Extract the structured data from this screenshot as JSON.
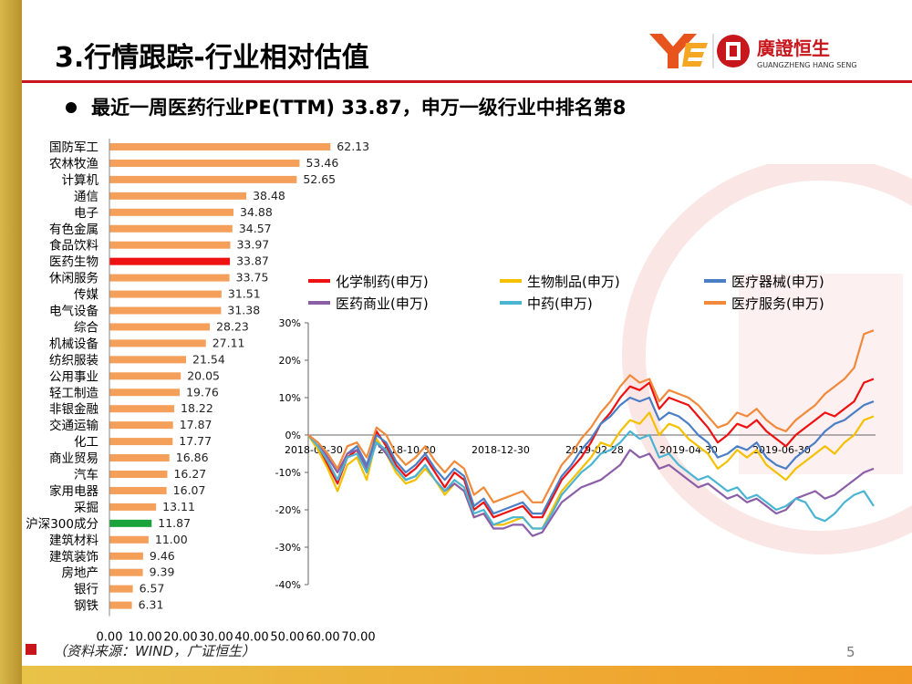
{
  "header": {
    "title": "3.行情跟踪-行业相对估值",
    "logo_text_cn": "廣證恒生",
    "logo_text_en": "GUANGZHENG HANG SENG"
  },
  "subtitle": "最近一周医药行业PE(TTM) 33.87，申万一级行业中排名第8",
  "footer": {
    "source": "（资料来源：WIND，广证恒生）",
    "page": "5"
  },
  "colors": {
    "bar_default": "#f4a05a",
    "bar_highlight_pharma": "#ee1111",
    "bar_highlight_index": "#1aa33a",
    "accent_red": "#c8161d"
  },
  "chart_data": [
    {
      "type": "bar",
      "orientation": "horizontal",
      "categories": [
        "国防军工",
        "农林牧渔",
        "计算机",
        "通信",
        "电子",
        "有色金属",
        "食品饮料",
        "医药生物",
        "休闲服务",
        "传媒",
        "电气设备",
        "综合",
        "机械设备",
        "纺织服装",
        "公用事业",
        "轻工制造",
        "非银金融",
        "交通运输",
        "化工",
        "商业贸易",
        "汽车",
        "家用电器",
        "采掘",
        "沪深300成分",
        "建筑材料",
        "建筑装饰",
        "房地产",
        "银行",
        "钢铁"
      ],
      "values": [
        62.13,
        53.46,
        52.65,
        38.48,
        34.88,
        34.57,
        33.97,
        33.87,
        33.75,
        31.51,
        31.38,
        28.23,
        27.11,
        21.54,
        20.05,
        19.76,
        18.22,
        17.87,
        17.77,
        16.86,
        16.27,
        16.07,
        13.11,
        11.87,
        11.0,
        9.46,
        9.39,
        6.57,
        6.31
      ],
      "value_labels": [
        "62.13",
        "53.46",
        "52.65",
        "38.48",
        "34.88",
        "34.57",
        "33.97",
        "33.87",
        "33.75",
        "31.51",
        "31.38",
        "28.23",
        "27.11",
        "21.54",
        "20.05",
        "19.76",
        "18.22",
        "17.87",
        "17.77",
        "16.86",
        "16.27",
        "16.07",
        "13.11",
        "11.87",
        "11.00",
        "9.46",
        "9.39",
        "6.57",
        "6.31"
      ],
      "highlights": {
        "医药生物": "red",
        "沪深300成分": "green"
      },
      "xlim": [
        0,
        70
      ],
      "xticks": [
        "0.00",
        "10.00",
        "20.00",
        "30.00",
        "40.00",
        "50.00",
        "60.00",
        "70.00"
      ]
    },
    {
      "type": "line",
      "ylim": [
        -40,
        30
      ],
      "yticks": [
        "30%",
        "20%",
        "10%",
        "0%",
        "-10%",
        "-20%",
        "-30%",
        "-40%"
      ],
      "xticks": [
        "2018-08-30",
        "2018-10-30",
        "2018-12-30",
        "2019-02-28",
        "2019-04-30",
        "2019-06-30"
      ],
      "x_range_days": 336,
      "series": [
        {
          "name": "化学制药(申万)",
          "color": "#ee1111",
          "values": [
            0,
            -3,
            -8,
            -13,
            -6,
            -4,
            -10,
            1,
            -3,
            -8,
            -11,
            -9,
            -6,
            -10,
            -14,
            -10,
            -12,
            -20,
            -18,
            -22,
            -21,
            -20,
            -19,
            -22,
            -22,
            -17,
            -12,
            -9,
            -6,
            -2,
            3,
            6,
            10,
            13,
            12,
            14,
            7,
            10,
            9,
            8,
            5,
            2,
            -2,
            0,
            3,
            2,
            4,
            1,
            -1,
            -3,
            0,
            2,
            4,
            6,
            5,
            7,
            9,
            14,
            15
          ]
        },
        {
          "name": "生物制品(申万)",
          "color": "#f5c000",
          "values": [
            0,
            -4,
            -9,
            -15,
            -8,
            -6,
            -12,
            -1,
            -5,
            -10,
            -13,
            -12,
            -9,
            -12,
            -16,
            -13,
            -15,
            -22,
            -21,
            -24,
            -24,
            -23,
            -22,
            -25,
            -25,
            -20,
            -15,
            -12,
            -9,
            -6,
            -2,
            -3,
            1,
            4,
            3,
            6,
            0,
            3,
            2,
            -1,
            -3,
            -5,
            -9,
            -7,
            -4,
            -6,
            -4,
            -8,
            -10,
            -12,
            -9,
            -7,
            -5,
            -3,
            -5,
            -2,
            0,
            4,
            5
          ]
        },
        {
          "name": "医疗器械(申万)",
          "color": "#4a7ec5",
          "values": [
            0,
            -3,
            -7,
            -12,
            -5,
            -3,
            -8,
            0,
            -2,
            -7,
            -10,
            -8,
            -5,
            -9,
            -12,
            -9,
            -11,
            -19,
            -17,
            -21,
            -20,
            -19,
            -18,
            -21,
            -21,
            -16,
            -11,
            -8,
            -4,
            -1,
            3,
            5,
            8,
            10,
            9,
            10,
            4,
            6,
            5,
            3,
            0,
            -2,
            -6,
            -5,
            -3,
            -4,
            -2,
            -6,
            -8,
            -9,
            -6,
            -4,
            -2,
            1,
            3,
            4,
            6,
            8,
            9
          ]
        },
        {
          "name": "医药商业(申万)",
          "color": "#8b5fa8",
          "values": [
            0,
            -2,
            -6,
            -10,
            -5,
            -4,
            -9,
            -2,
            -5,
            -9,
            -12,
            -11,
            -8,
            -12,
            -15,
            -13,
            -15,
            -22,
            -21,
            -25,
            -25,
            -24,
            -24,
            -27,
            -26,
            -22,
            -18,
            -16,
            -14,
            -13,
            -12,
            -10,
            -8,
            -4,
            -6,
            -5,
            -9,
            -8,
            -10,
            -12,
            -14,
            -13,
            -15,
            -17,
            -16,
            -18,
            -17,
            -19,
            -21,
            -20,
            -17,
            -16,
            -15,
            -17,
            -16,
            -14,
            -12,
            -10,
            -9
          ]
        },
        {
          "name": "中药(申万)",
          "color": "#4ab5d3",
          "values": [
            0,
            -3,
            -7,
            -12,
            -6,
            -5,
            -10,
            -2,
            -4,
            -9,
            -12,
            -11,
            -8,
            -12,
            -15,
            -12,
            -14,
            -21,
            -20,
            -24,
            -23,
            -22,
            -22,
            -25,
            -25,
            -21,
            -16,
            -13,
            -10,
            -8,
            -5,
            -4,
            -2,
            1,
            -1,
            0,
            -6,
            -5,
            -8,
            -10,
            -12,
            -11,
            -13,
            -15,
            -14,
            -17,
            -16,
            -18,
            -20,
            -19,
            -17,
            -18,
            -22,
            -23,
            -21,
            -18,
            -16,
            -15,
            -19
          ]
        },
        {
          "name": "医疗服务(申万)",
          "color": "#f08a3a",
          "values": [
            0,
            -2,
            -5,
            -9,
            -3,
            -2,
            -6,
            2,
            0,
            -5,
            -8,
            -6,
            -3,
            -7,
            -10,
            -7,
            -9,
            -16,
            -14,
            -18,
            -17,
            -16,
            -15,
            -18,
            -18,
            -13,
            -8,
            -5,
            -1,
            2,
            6,
            9,
            13,
            16,
            14,
            15,
            9,
            12,
            11,
            10,
            8,
            5,
            2,
            3,
            6,
            5,
            7,
            4,
            2,
            1,
            4,
            6,
            8,
            11,
            13,
            15,
            18,
            27,
            28
          ]
        }
      ]
    }
  ]
}
